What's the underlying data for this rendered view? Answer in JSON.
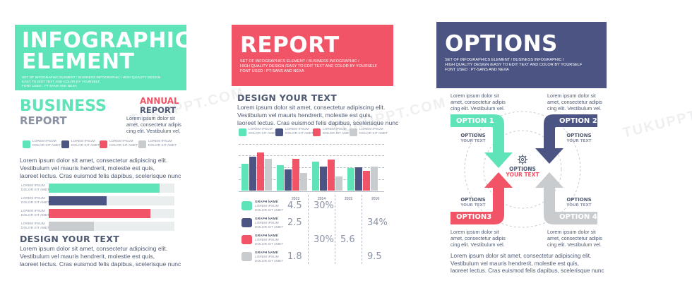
{
  "colors": {
    "teal": "#5fe3b9",
    "navy": "#4b5483",
    "red": "#f15466",
    "gray": "#c8cccf",
    "text": "#4e5a72"
  },
  "watermark": "TUKUPPT.COM",
  "left": {
    "header_title_1": "INFOGRAPHIC",
    "header_title_2": "ELEMENT",
    "header_sub_1": "SET OF INFOGRAPHIC ELEMENT / BUSINESS INFOGRAPHIC / HIGH QUALITY DESIGN",
    "header_sub_2": "EASY TO EDIT TEXT AND COLOR BY YOURSELF",
    "header_sub_3": "FONT USED : PT-SANS AND NEXA",
    "business": "BUSINESS",
    "report": "REPORT",
    "annual": "ANNUAL",
    "annual_report": "REPORT",
    "side_lorem_1": "Lorem ipsum dolor sit",
    "side_lorem_2": "amet, consectetur adipis",
    "side_lorem_3": "cing elit. Vestibulum vel.",
    "legend": [
      {
        "l1": "LOREM IPSUM",
        "l2": "DOLOR SIT AMET"
      },
      {
        "l1": "LOREM IPSUM",
        "l2": "DOLOR SIT AMET"
      },
      {
        "l1": "LOREM IPSUM",
        "l2": "DOLOR SIT AMET"
      },
      {
        "l1": "LOREM IPSUM",
        "l2": "DOLOR SIT AMET"
      }
    ],
    "body_1": "Lorem ipsum dolor sit amet, consectetur adipiscing elit.",
    "body_2": "Vestibulum vel mauris hendrerit, molestie est quis,",
    "body_3": "laoreet lectus. Cras euismod felis dapibus, scelerisque nunc",
    "bars": [
      {
        "l1": "LOREM IPSUM",
        "l2": "DOLOR SIT AMET",
        "value": 0.88
      },
      {
        "l1": "LOREM IPSUM",
        "l2": "DOLOR SIT AMET",
        "value": 0.46
      },
      {
        "l1": "LOREM IPSUM",
        "l2": "DOLOR SIT AMET",
        "value": 0.81
      },
      {
        "l1": "LOREM IPSUM",
        "l2": "DOLOR SIT AMET",
        "value": 0.36
      }
    ],
    "design": "DESIGN YOUR TEXT",
    "foot_1": "Lorem ipsum dolor sit amet, consectetur adipiscing elit.",
    "foot_2": "Vestibulum vel mauris hendrerit, molestie est quis,",
    "foot_3": "laoreet lectus. Cras euismod felis dapibus, scelerisque nunc"
  },
  "mid": {
    "header_title": "REPORT",
    "header_sub_1": "SET OF INFOGRAPHICS ELEMENT / BUSINESS INFOGRAPHIC /",
    "header_sub_2": "HIGH QUALITY DESIGN /EASY TO EDIT TEXT AND COLOR BY YOURSELF",
    "header_sub_3": "FONT USED : PT-SANS AND NEXA",
    "design": "DESIGN YOUR TEXT",
    "body_1": "Lorem ipsum dolor sit amet, consectetur adipiscing elit.",
    "body_2": "Vestibulum vel mauris hendrerit, molestie est quis,",
    "body_3": "laoreet lectus. Cras euismod felis dapibus, scelerisque nunc",
    "legend": [
      {
        "l1": "LOREM IPSUM",
        "l2": "DOLOR SIT AMET"
      },
      {
        "l1": "LOREM IPSUM",
        "l2": "DOLOR SIT AMET"
      },
      {
        "l1": "LOREM IPSUM",
        "l2": "DOLOR SIT AMET"
      },
      {
        "l1": "LOREM IPSUM",
        "l2": "DOLOR SIT AMET"
      }
    ],
    "years": [
      "2013",
      "2014",
      "2015",
      "2016"
    ],
    "rows": [
      {
        "l1": "GRAPH NAME",
        "l2": "LOREM IPSUM",
        "l3": "DOLOR SIT AMET",
        "v2013": "4.5",
        "v2014": "30%",
        "v2015": "",
        "v2016": ""
      },
      {
        "l1": "GRAPH NAME",
        "l2": "LOREM IPSUM",
        "l3": "DOLOR SIT AMET",
        "v2013": "2.5",
        "v2014": "",
        "v2015": "",
        "v2016": "34%"
      },
      {
        "l1": "GRAPH NAME",
        "l2": "LOREM IPSUM",
        "l3": "DOLOR SIT AMET",
        "v2013": "",
        "v2014": "30%",
        "v2015": "5.6",
        "v2016": ""
      },
      {
        "l1": "GRAPH NAME",
        "l2": "LOREM IPSUM",
        "l3": "DOLOR SIT AMET",
        "v2013": "1.8",
        "v2014": "",
        "v2015": "",
        "v2016": "9.5"
      }
    ]
  },
  "chart_data": {
    "type": "bar",
    "categories": [
      "2013",
      "2014",
      "2015",
      "2016"
    ],
    "series": [
      {
        "values": [
          58,
          55,
          62,
          48
        ]
      },
      {
        "values": [
          72,
          45,
          52,
          50
        ]
      },
      {
        "values": [
          82,
          68,
          66,
          42
        ]
      },
      {
        "values": [
          68,
          38,
          30,
          52
        ]
      }
    ],
    "ylim": [
      0,
      100
    ],
    "grid": true
  },
  "right": {
    "header_title": "OPTIONS",
    "header_sub_1": "SET OF INFOGRAPHICS ELEMENT / BUSINESS INFOGRAPHIC /",
    "header_sub_2": "HIGH QUALITY DESIGN /EASY TO EDIT TEXT AND COLOR BY YOURSELF",
    "header_sub_3": "FONT USED : PT-SANS AND NEXA",
    "center_1": "OPTIONS",
    "center_2": "YOUR TEXT",
    "options": [
      {
        "label": "OPTION 1",
        "cap1": "OPTIONS",
        "cap2": "YOUR TEXT",
        "l1": "Lorem ipsum dolor sit",
        "l2": "amet, consectetur adipis",
        "l3": "cing elit. Vestibulum vel."
      },
      {
        "label": "OPTION 2",
        "cap1": "OPTIONS",
        "cap2": "YOUR TEXT",
        "l1": "Lorem ipsum dolor sit",
        "l2": "amet, consectetur adipis",
        "l3": "cing elit. Vestibulum vel."
      },
      {
        "label": "OPTION3",
        "cap1": "OPTIONS",
        "cap2": "YOUR TEXT",
        "l1": "Lorem ipsum dolor sit",
        "l2": "amet, consectetur adipis",
        "l3": "cing elit. Vestibulum vel."
      },
      {
        "label": "OPTION 4",
        "cap1": "OPTIONS",
        "cap2": "YOUR TEXT",
        "l1": "Lorem ipsum dolor sit",
        "l2": "amet, consectetur adipis",
        "l3": "cing elit. Vestibulum vel."
      }
    ],
    "foot_1": "Lorem ipsum dolor sit amet, consectetur adipiscing elit.",
    "foot_2": "Vestibulum vel mauris hendrerit, molestie est quis,",
    "foot_3": "laoreet lectus. Cras euismod felis dapibus, scelerisque nunc"
  }
}
